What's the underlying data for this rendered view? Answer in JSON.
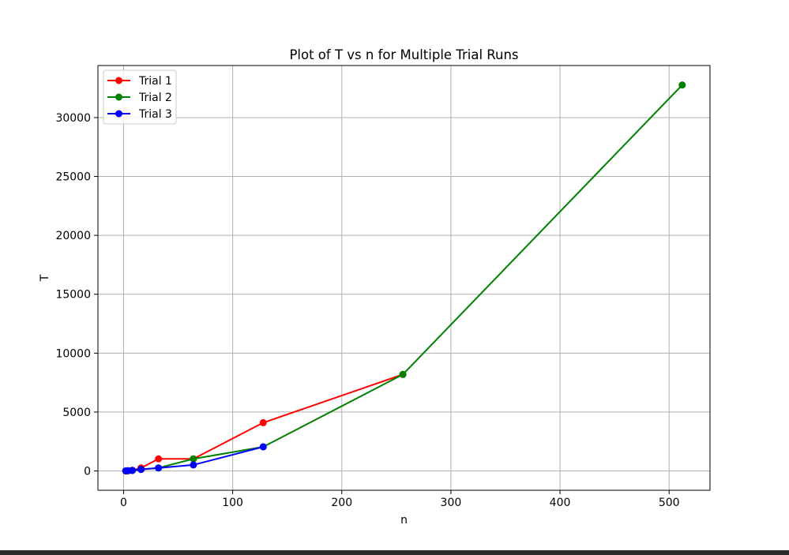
{
  "chart_data": {
    "type": "line",
    "title": "Plot of T vs n for Multiple Trial Runs",
    "xlabel": "n",
    "ylabel": "T",
    "xlim": [
      -23.5,
      537.5
    ],
    "ylim": [
      -1640,
      34420
    ],
    "xticks": [
      0,
      100,
      200,
      300,
      400,
      500
    ],
    "yticks": [
      0,
      5000,
      10000,
      15000,
      20000,
      25000,
      30000
    ],
    "grid": true,
    "legend_position": "top-left",
    "series": [
      {
        "name": "Trial 1",
        "color": "#ff0000",
        "x": [
          2,
          4,
          8,
          16,
          32,
          64,
          128,
          256
        ],
        "y": [
          4,
          16,
          64,
          256,
          1024,
          1024,
          4096,
          8192
        ]
      },
      {
        "name": "Trial 2",
        "color": "#008000",
        "x": [
          2,
          4,
          8,
          16,
          32,
          64,
          128,
          256,
          512
        ],
        "y": [
          4,
          16,
          32,
          128,
          256,
          1024,
          2048,
          8192,
          32768
        ]
      },
      {
        "name": "Trial 3",
        "color": "#0000ff",
        "x": [
          2,
          4,
          8,
          16,
          32,
          64,
          128
        ],
        "y": [
          4,
          16,
          48,
          128,
          256,
          512,
          2048
        ]
      }
    ]
  }
}
